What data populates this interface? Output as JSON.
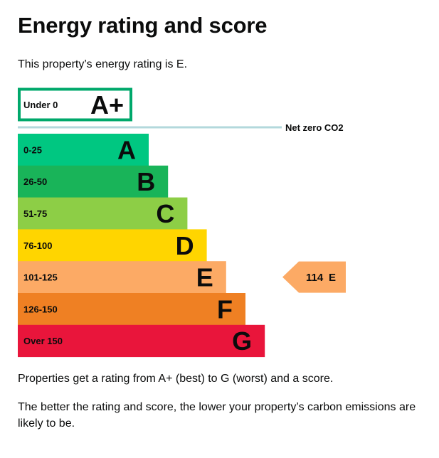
{
  "page": {
    "title": "Energy rating and score",
    "intro": "This property’s energy rating is E.",
    "footer_1": "Properties get a rating from A+ (best) to G (worst) and a score.",
    "footer_2": "The better the rating and score, the lower your property’s carbon emissions are likely to be."
  },
  "chart_data": {
    "type": "bar",
    "title": "",
    "categories": [
      "A+",
      "A",
      "B",
      "C",
      "D",
      "E",
      "F",
      "G"
    ],
    "bands": [
      {
        "letter": "A+",
        "range": "Under 0",
        "color": "#00a86b",
        "outlined": true
      },
      {
        "letter": "A",
        "range": "0-25",
        "color": "#00c781"
      },
      {
        "letter": "B",
        "range": "26-50",
        "color": "#19b459"
      },
      {
        "letter": "C",
        "range": "51-75",
        "color": "#8dce46"
      },
      {
        "letter": "D",
        "range": "76-100",
        "color": "#ffd500"
      },
      {
        "letter": "E",
        "range": "101-125",
        "color": "#fcaa65"
      },
      {
        "letter": "F",
        "range": "126-150",
        "color": "#ef8023"
      },
      {
        "letter": "G",
        "range": "Over 150",
        "color": "#e9153b"
      }
    ],
    "net_zero_label": "Net zero CO2",
    "net_zero_color": "#b3d8dc",
    "current": {
      "score": 114,
      "rating": "E",
      "color": "#fcaa65"
    }
  }
}
